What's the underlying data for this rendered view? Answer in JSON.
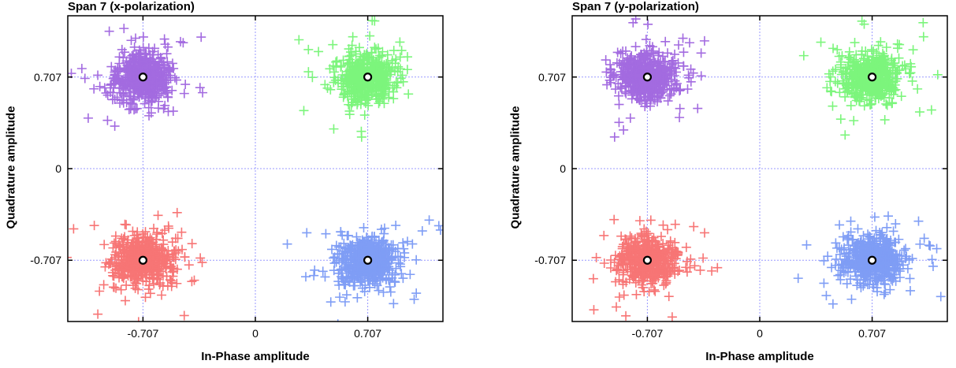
{
  "chart_data": [
    {
      "type": "scatter",
      "title": "Span 7 (x-polarization)",
      "xlabel": "In-Phase amplitude",
      "ylabel": "Quadrature amplitude",
      "xlim": [
        -1.18,
        1.18
      ],
      "ylim": [
        -1.18,
        1.18
      ],
      "xticks": [
        "-0.707",
        "0",
        "0.707"
      ],
      "xtick_values": [
        -0.707,
        0,
        0.707
      ],
      "yticks": [
        "0.707",
        "0",
        "-0.707"
      ],
      "ytick_values": [
        0.707,
        0,
        -0.707
      ],
      "grid": true,
      "grid_color": "#9999ff",
      "ideal_points": [
        [
          -0.707,
          0.707
        ],
        [
          0.707,
          0.707
        ],
        [
          -0.707,
          -0.707
        ],
        [
          0.707,
          -0.707
        ]
      ],
      "clusters": [
        {
          "center": [
            -0.707,
            0.707
          ],
          "spread": 0.14,
          "color": "#a36be0"
        },
        {
          "center": [
            0.707,
            0.707
          ],
          "spread": 0.14,
          "color": "#7cf57c"
        },
        {
          "center": [
            -0.707,
            -0.707
          ],
          "spread": 0.14,
          "color": "#f77575"
        },
        {
          "center": [
            0.707,
            -0.707
          ],
          "spread": 0.14,
          "color": "#7f9df5"
        }
      ]
    },
    {
      "type": "scatter",
      "title": "Span 7 (y-polarization)",
      "xlabel": "In-Phase amplitude",
      "ylabel": "Quadrature amplitude",
      "xlim": [
        -1.18,
        1.18
      ],
      "ylim": [
        -1.18,
        1.18
      ],
      "xticks": [
        "-0.707",
        "0",
        "0.707"
      ],
      "xtick_values": [
        -0.707,
        0,
        0.707
      ],
      "yticks": [
        "0.707",
        "0",
        "-0.707"
      ],
      "ytick_values": [
        0.707,
        0,
        -0.707
      ],
      "grid": true,
      "grid_color": "#9999ff",
      "ideal_points": [
        [
          -0.707,
          0.707
        ],
        [
          0.707,
          0.707
        ],
        [
          -0.707,
          -0.707
        ],
        [
          0.707,
          -0.707
        ]
      ],
      "clusters": [
        {
          "center": [
            -0.707,
            0.707
          ],
          "spread": 0.14,
          "color": "#a36be0"
        },
        {
          "center": [
            0.707,
            0.707
          ],
          "spread": 0.14,
          "color": "#7cf57c"
        },
        {
          "center": [
            -0.707,
            -0.707
          ],
          "spread": 0.14,
          "color": "#f77575"
        },
        {
          "center": [
            0.707,
            -0.707
          ],
          "spread": 0.14,
          "color": "#7f9df5"
        }
      ]
    }
  ]
}
